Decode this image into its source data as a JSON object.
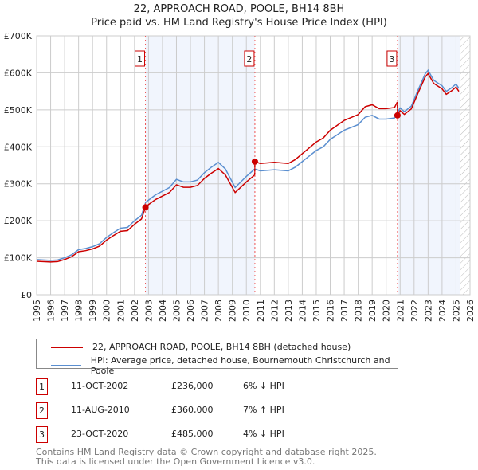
{
  "title": "22, APPROACH ROAD, POOLE, BH14 8BH",
  "subtitle": "Price paid vs. HM Land Registry's House Price Index (HPI)",
  "chart_data": {
    "type": "line",
    "xlim": [
      1995,
      2026
    ],
    "ylim": [
      0,
      700000
    ],
    "yticks": [
      {
        "v": 0,
        "label": "£0"
      },
      {
        "v": 100000,
        "label": "£100K"
      },
      {
        "v": 200000,
        "label": "£200K"
      },
      {
        "v": 300000,
        "label": "£300K"
      },
      {
        "v": 400000,
        "label": "£400K"
      },
      {
        "v": 500000,
        "label": "£500K"
      },
      {
        "v": 600000,
        "label": "£600K"
      },
      {
        "v": 700000,
        "label": "£700K"
      }
    ],
    "xticks": [
      "1995",
      "1996",
      "1997",
      "1998",
      "1999",
      "2000",
      "2001",
      "2002",
      "2003",
      "2004",
      "2005",
      "2006",
      "2007",
      "2008",
      "2009",
      "2010",
      "2011",
      "2012",
      "2013",
      "2014",
      "2015",
      "2016",
      "2017",
      "2018",
      "2019",
      "2020",
      "2021",
      "2022",
      "2023",
      "2024",
      "2025",
      "2026"
    ],
    "data_end": 2025.3,
    "series": [
      {
        "name": "HPI: Average price, detached house, Bournemouth Christchurch and Poole",
        "color": "#5b8fd0",
        "x": [
          1995,
          1996,
          1996.5,
          1997,
          1997.5,
          1998,
          1998.5,
          1999,
          1999.5,
          2000,
          2000.5,
          2001,
          2001.5,
          2002,
          2002.5,
          2002.8,
          2003.5,
          2004.5,
          2005,
          2005.5,
          2006,
          2006.5,
          2007,
          2007.5,
          2008,
          2008.5,
          2009.2,
          2009.6,
          2010,
          2010.6,
          2011,
          2012,
          2013,
          2013.5,
          2014,
          2015,
          2015.5,
          2016,
          2017,
          2018,
          2018.5,
          2019,
          2019.5,
          2020,
          2020.6,
          2021,
          2021.3,
          2021.8,
          2022.3,
          2022.8,
          2023,
          2023.4,
          2024,
          2024.3,
          2024.7,
          2025,
          2025.2
        ],
        "y": [
          95000,
          93000,
          94000,
          100000,
          108000,
          122000,
          125000,
          130000,
          138000,
          155000,
          168000,
          180000,
          182000,
          200000,
          215000,
          250000,
          270000,
          290000,
          312000,
          305000,
          305000,
          310000,
          330000,
          345000,
          358000,
          340000,
          290000,
          305000,
          320000,
          340000,
          335000,
          338000,
          335000,
          345000,
          360000,
          390000,
          400000,
          420000,
          445000,
          460000,
          480000,
          485000,
          475000,
          475000,
          478000,
          505000,
          495000,
          510000,
          555000,
          598000,
          607000,
          580000,
          565000,
          550000,
          560000,
          570000,
          558000
        ]
      },
      {
        "name": "22, APPROACH ROAD, POOLE, BH14 8BH (detached house)",
        "color": "#cc0000"
      }
    ],
    "sales": [
      {
        "n": "1",
        "x": 2002.78,
        "price": 236000,
        "date": "11-OCT-2002",
        "price_label": "£236,000",
        "hpi_label": "6% ↓ HPI"
      },
      {
        "n": "2",
        "x": 2010.61,
        "price": 360000,
        "date": "11-AUG-2010",
        "price_label": "£360,000",
        "hpi_label": "7% ↑ HPI"
      },
      {
        "n": "3",
        "x": 2020.81,
        "price": 485000,
        "date": "23-OCT-2020",
        "price_label": "£485,000",
        "hpi_label": "4% ↓ HPI"
      }
    ]
  },
  "legend": {
    "property": "22, APPROACH ROAD, POOLE, BH14 8BH (detached house)",
    "hpi": "HPI: Average price, detached house, Bournemouth Christchurch and Poole"
  },
  "footer": {
    "line1": "Contains HM Land Registry data © Crown copyright and database right 2025.",
    "line2": "This data is licensed under the Open Government Licence v3.0."
  }
}
